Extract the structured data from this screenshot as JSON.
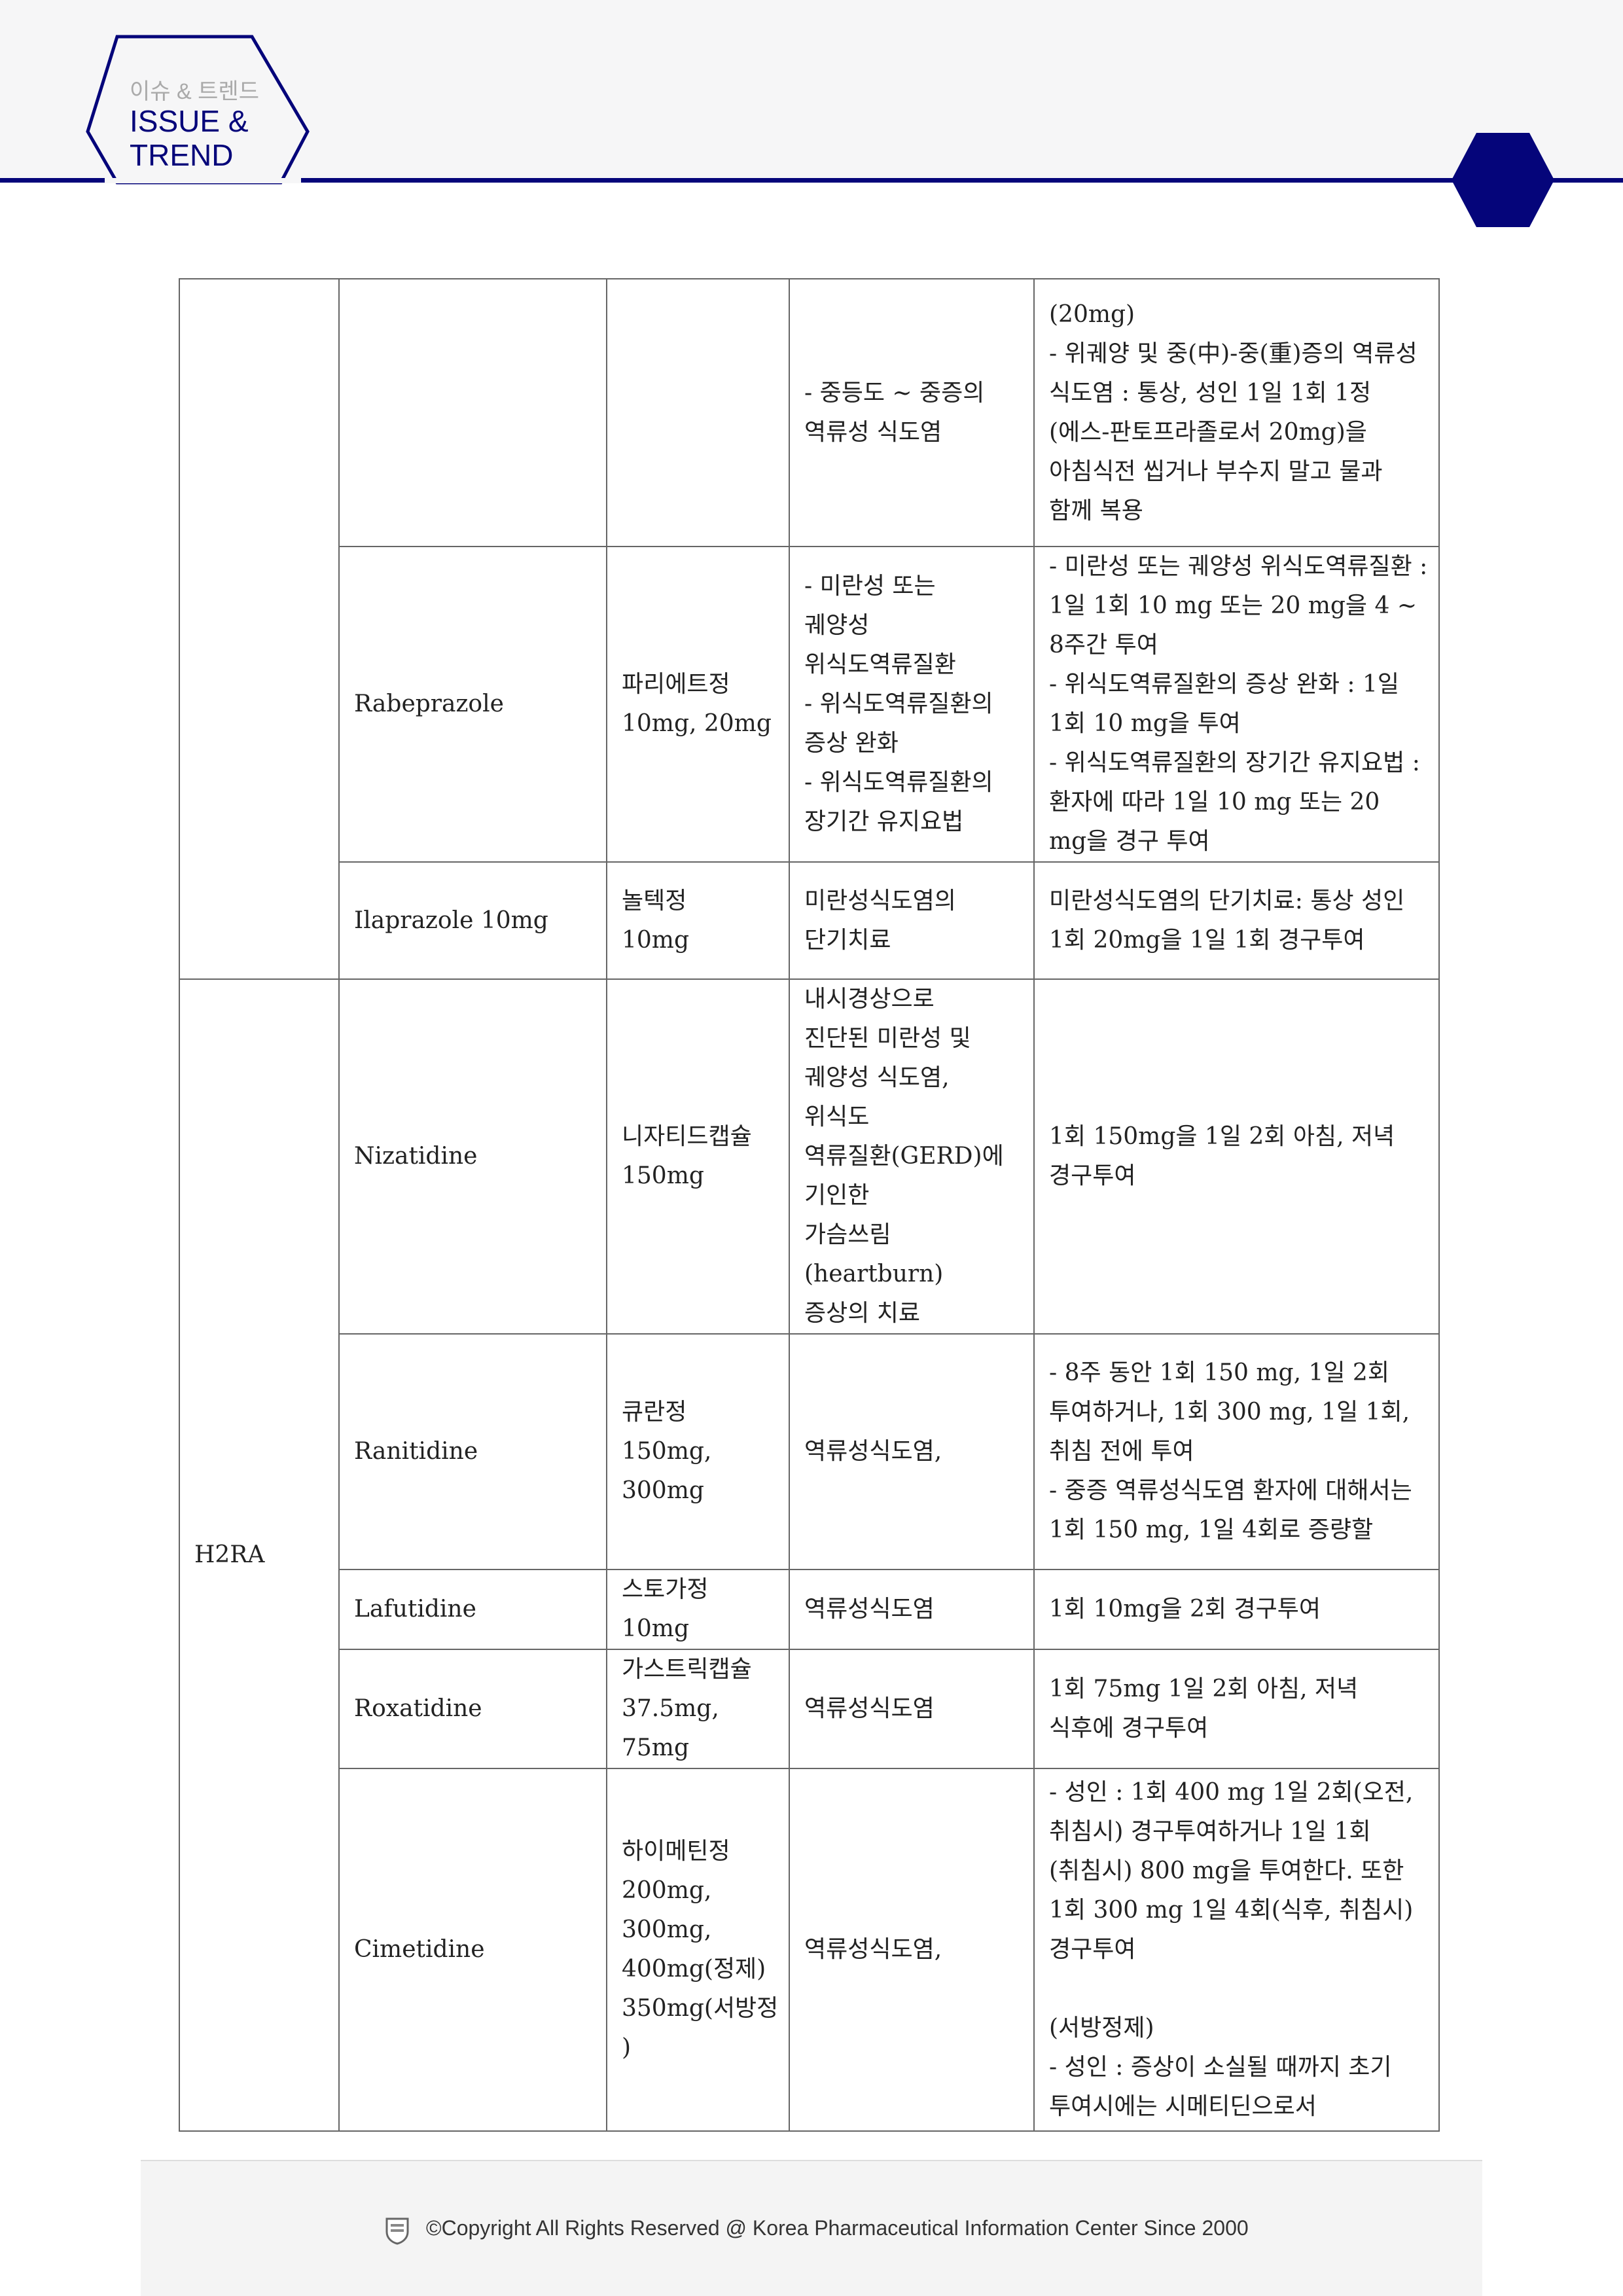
{
  "header": {
    "logo_korean": "이슈 & 트렌드",
    "logo_line1": "ISSUE &",
    "logo_line2": "TREND",
    "accent_color": "#05057a"
  },
  "table": {
    "rows": [
      {
        "group": "",
        "drug": "",
        "product": "",
        "indication": "- 중등도 ~ 중증의 역류성 식도염",
        "dosage": "(20mg)\n- 위궤양 및 중(中)-중(重)증의 역류성 식도염 : 통상, 성인 1일 1회 1정(에스-판토프라졸로서 20mg)을 아침식전 씹거나 부수지 말고 물과 함께 복용"
      },
      {
        "drug": "Rabeprazole",
        "product": "파리에트정\n10mg, 20mg",
        "indication": "- 미란성 또는\n궤양성\n위식도역류질환\n- 위식도역류질환의\n증상 완화\n- 위식도역류질환의\n장기간 유지요법",
        "dosage": "- 미란성 또는 궤양성 위식도역류질환 : 1일 1회 10 mg 또는 20 mg을 4 ~ 8주간 투여\n- 위식도역류질환의 증상 완화 : 1일 1회 10 mg을 투여\n- 위식도역류질환의 장기간 유지요법 : 환자에 따라 1일 10 mg 또는 20 mg을 경구 투여"
      },
      {
        "drug": "Ilaprazole 10mg",
        "product": "놀텍정\n10mg",
        "indication": "미란성식도염의\n단기치료",
        "dosage": "미란성식도염의 단기치료: 통상 성인 1회 20mg을 1일 1회 경구투여"
      },
      {
        "group": "H2RA",
        "drug": "Nizatidine",
        "product": "니자티드캡슐\n150mg",
        "indication": "내시경상으로\n진단된 미란성 및\n궤양성 식도염,\n위식도\n역류질환(GERD)에\n기인한\n가슴쓰림(heartburn)\n증상의 치료",
        "dosage": "1회 150mg을 1일 2회 아침, 저녁 경구투여"
      },
      {
        "drug": "Ranitidine",
        "product": "큐란정\n150mg,\n300mg",
        "indication": "역류성식도염,",
        "dosage": "- 8주 동안 1회 150 mg, 1일 2회 투여하거나, 1회 300 mg, 1일 1회, 취침 전에 투여\n- 중증 역류성식도염 환자에 대해서는 1회 150 mg, 1일 4회로 증량할"
      },
      {
        "drug": "Lafutidine",
        "product": "스토가정\n10mg",
        "indication": "역류성식도염",
        "dosage": "1회 10mg을 2회 경구투여"
      },
      {
        "drug": "Roxatidine",
        "product": "가스트릭캡슐\n37.5mg,\n75mg",
        "indication": "역류성식도염",
        "dosage": "1회 75mg 1일 2회 아침, 저녁 식후에 경구투여"
      },
      {
        "drug": "Cimetidine",
        "product": "하이메틴정\n200mg,\n300mg,\n400mg(정제)\n350mg(서방정\n)",
        "indication": "역류성식도염,",
        "dosage": "- 성인 : 1회 400 mg 1일 2회(오전, 취침시) 경구투여하거나 1일 1회(취침시) 800 mg을 투여한다. 또한 1회 300 mg 1일 4회(식후, 취침시) 경구투여\n\n(서방정제)\n- 성인 : 증상이 소실될 때까지 초기 투여시에는 시메티딘으로서"
      }
    ]
  },
  "footer": {
    "copyright": "©Copyright All Rights Reserved @ Korea Pharmaceutical Information Center Since 2000"
  }
}
